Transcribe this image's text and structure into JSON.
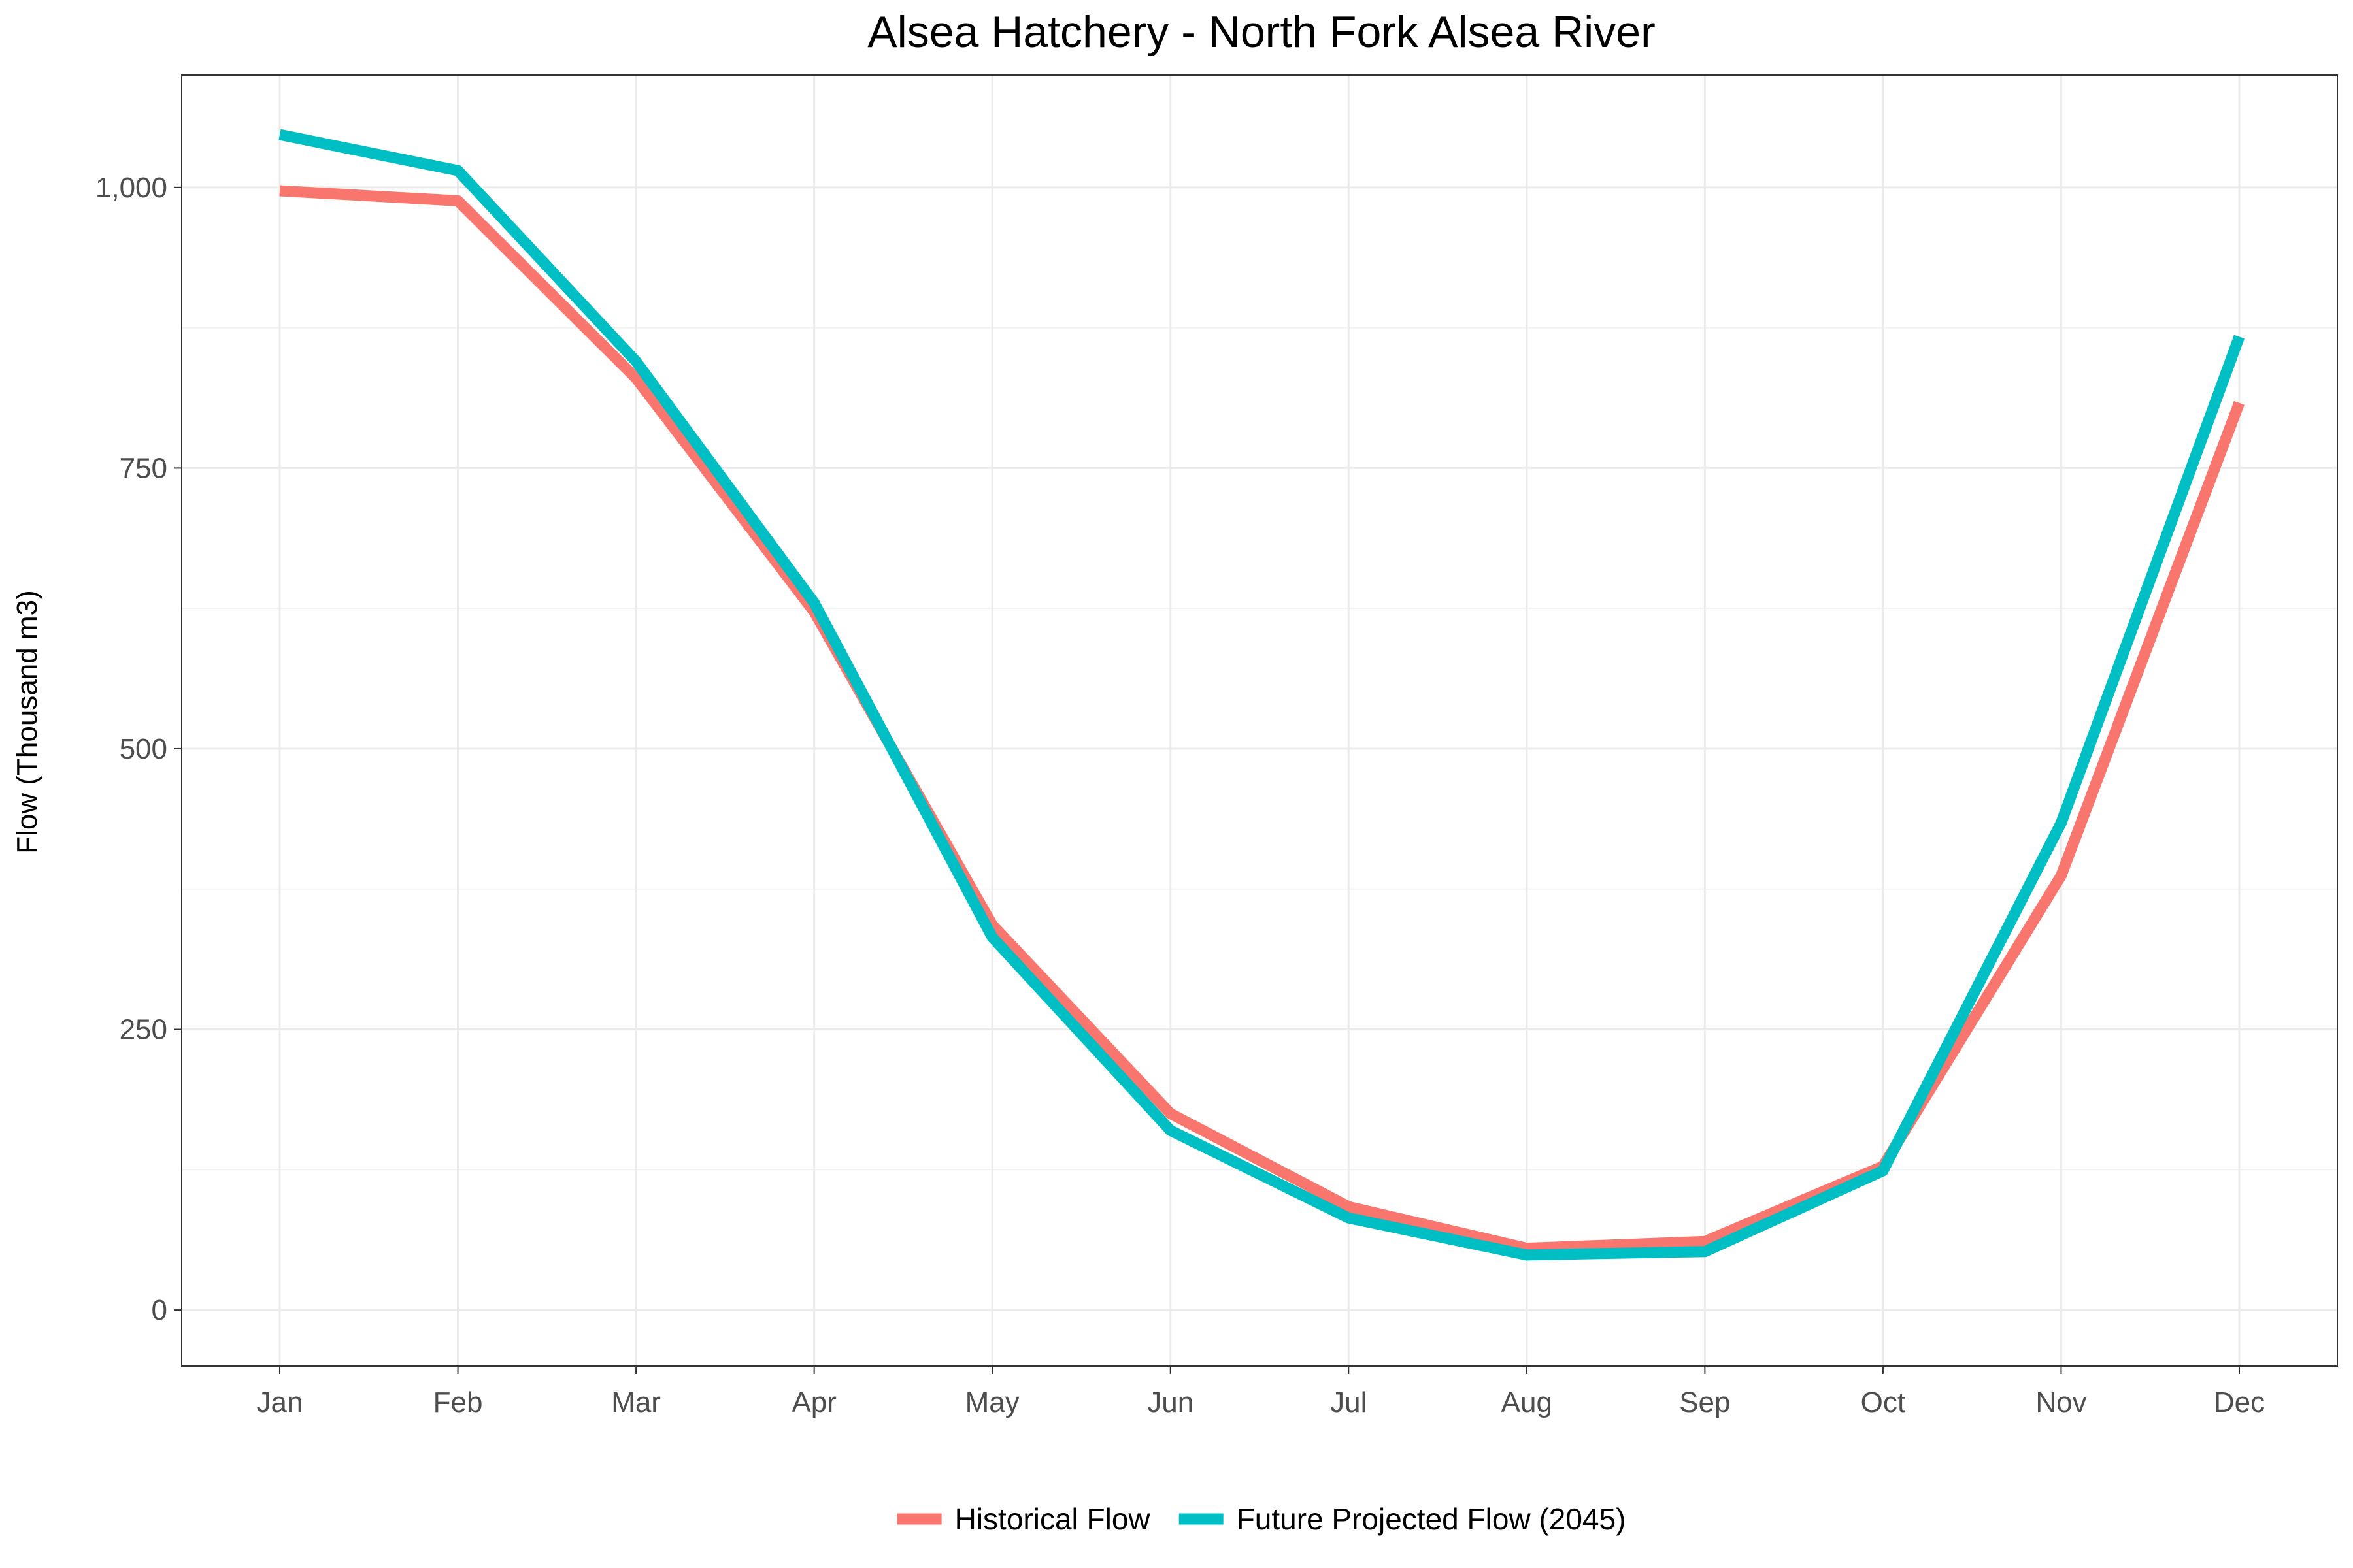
{
  "chart_data": {
    "type": "line",
    "title": "Alsea Hatchery - North Fork Alsea River",
    "xlabel": "",
    "ylabel": "Flow (Thousand m3)",
    "categories": [
      "Jan",
      "Feb",
      "Mar",
      "Apr",
      "May",
      "Jun",
      "Jul",
      "Aug",
      "Sep",
      "Oct",
      "Nov",
      "Dec"
    ],
    "ylim": [
      -50,
      1100
    ],
    "yticks": [
      0,
      250,
      500,
      750,
      1000
    ],
    "ytick_labels": [
      "0",
      "250",
      "500",
      "750",
      "1,000"
    ],
    "grid": true,
    "legend_position": "bottom",
    "series": [
      {
        "name": "Historical Flow",
        "color": "#F8766D",
        "values": [
          997,
          988,
          830,
          622,
          343,
          175,
          92,
          55,
          61,
          128,
          387,
          808
        ]
      },
      {
        "name": "Future Projected Flow (2045)",
        "color": "#00BFC4",
        "values": [
          1047,
          1015,
          845,
          630,
          332,
          160,
          82,
          49,
          52,
          124,
          434,
          867
        ]
      }
    ]
  }
}
